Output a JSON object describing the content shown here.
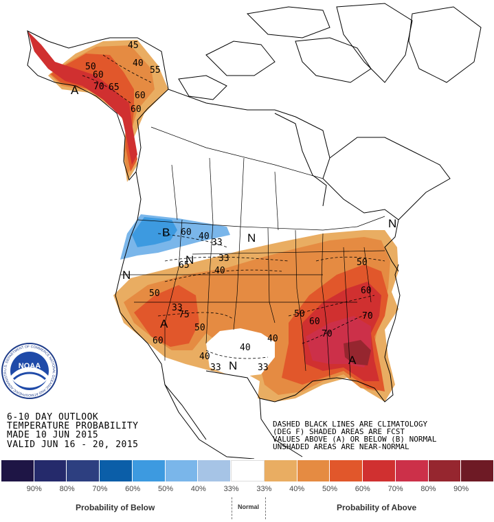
{
  "header": {
    "line1": "6-10 DAY OUTLOOK",
    "line2": "TEMPERATURE PROBABILITY",
    "line3": "MADE  10 JUN 2015",
    "line4": "VALID  JUN 16 - 20, 2015"
  },
  "notes": {
    "line1": "DASHED BLACK LINES ARE CLIMATOLOGY",
    "line2": "(DEG F) SHADED AREAS ARE FCST",
    "line3": "VALUES ABOVE (A) OR BELOW (B) NORMAL",
    "line4": "UNSHADED AREAS ARE NEAR-NORMAL"
  },
  "logo": {
    "text": "NOAA",
    "ring_text": "U.S. DEPARTMENT OF COMMERCE NATIONAL OCEANIC AND ATMOSPHERIC ADMINISTRATION"
  },
  "map_labels": {
    "letters": [
      "A",
      "B",
      "N",
      "N",
      "N",
      "A",
      "N",
      "A",
      "N"
    ],
    "values": [
      "45",
      "50",
      "40",
      "60",
      "55",
      "70",
      "65",
      "60",
      "60",
      "60",
      "40",
      "33",
      "33",
      "65",
      "40",
      "50",
      "75",
      "50",
      "60",
      "40",
      "33",
      "40",
      "33",
      "50",
      "60",
      "70",
      "50",
      "60",
      "70",
      "40",
      "33"
    ]
  },
  "legend": {
    "colors": [
      "#1e1545",
      "#252a6b",
      "#2d3f80",
      "#0b5ea8",
      "#3d9ae0",
      "#7ab6ea",
      "#a6c4e6",
      "#ffffff",
      "#e9ad62",
      "#e58b42",
      "#e1572b",
      "#d03030",
      "#cc3049",
      "#96262f",
      "#6e1a25"
    ],
    "tick_labels": [
      "90%",
      "80%",
      "70%",
      "60%",
      "50%",
      "40%",
      "33%",
      "33%",
      "40%",
      "50%",
      "60%",
      "70%",
      "80%",
      "90%"
    ],
    "below_label": "Probability of Below",
    "normal_label": "Normal",
    "above_label": "Probability of Above"
  }
}
